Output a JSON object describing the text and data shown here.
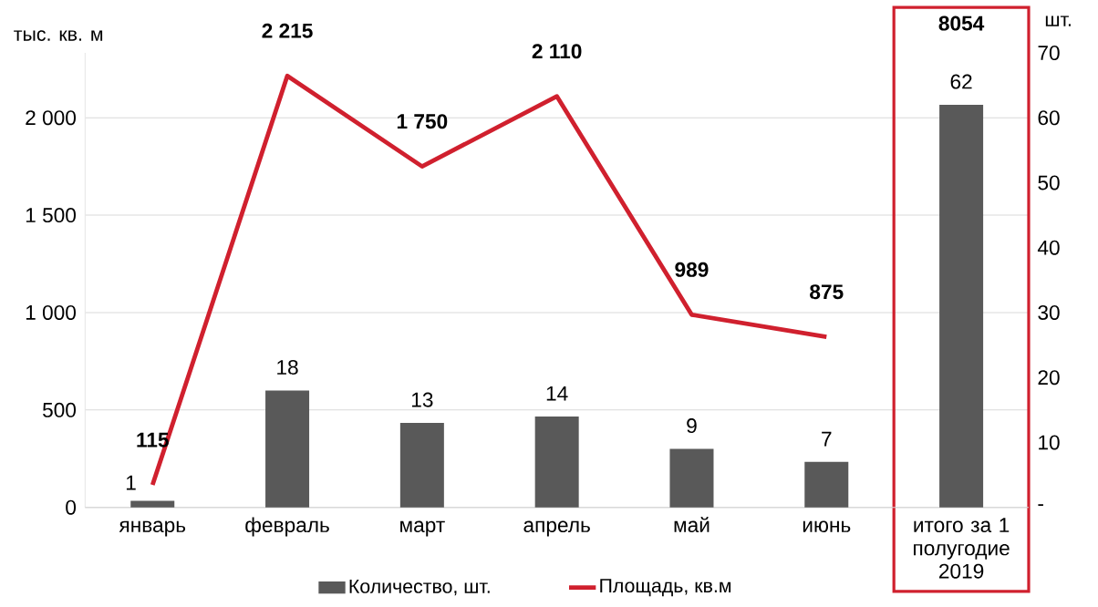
{
  "chart_data": {
    "type": "bar",
    "ylabel": "тыс. кв. м",
    "y2label": "шт.",
    "categories": [
      "январь",
      "февраль",
      "март",
      "апрель",
      "май",
      "июнь",
      "итого за 1 полугодие 2019"
    ],
    "series": [
      {
        "name": "Количество, шт.",
        "axis": "y2",
        "color": "#595959",
        "values": [
          1,
          18,
          13,
          14,
          9,
          7,
          62
        ],
        "value_labels": [
          "1",
          "18",
          "13",
          "14",
          "9",
          "7",
          "62"
        ]
      },
      {
        "name": "Площадь, кв.м",
        "type": "line",
        "axis": "y",
        "color": "#d0202e",
        "values": [
          115,
          2215,
          1750,
          2110,
          989,
          875,
          null
        ],
        "value_labels": [
          "115",
          "2 215",
          "1 750",
          "2 110",
          "989",
          "875",
          null
        ]
      }
    ],
    "ylim": [
      0,
      2333
    ],
    "yticks": [
      0,
      500,
      {
        "value": 1000,
        "label": "1 000"
      },
      {
        "value": 1500,
        "label": "1 500"
      },
      {
        "value": 2000,
        "label": "2 000"
      }
    ],
    "y2lim": [
      0,
      70
    ],
    "y2ticks": [
      {
        "value": 0,
        "label": "-"
      },
      10,
      20,
      30,
      40,
      50,
      60,
      70
    ],
    "annotations": [
      "8054"
    ],
    "grid": "y",
    "legend": "bottom",
    "marker": "none",
    "line_style": "solid"
  }
}
